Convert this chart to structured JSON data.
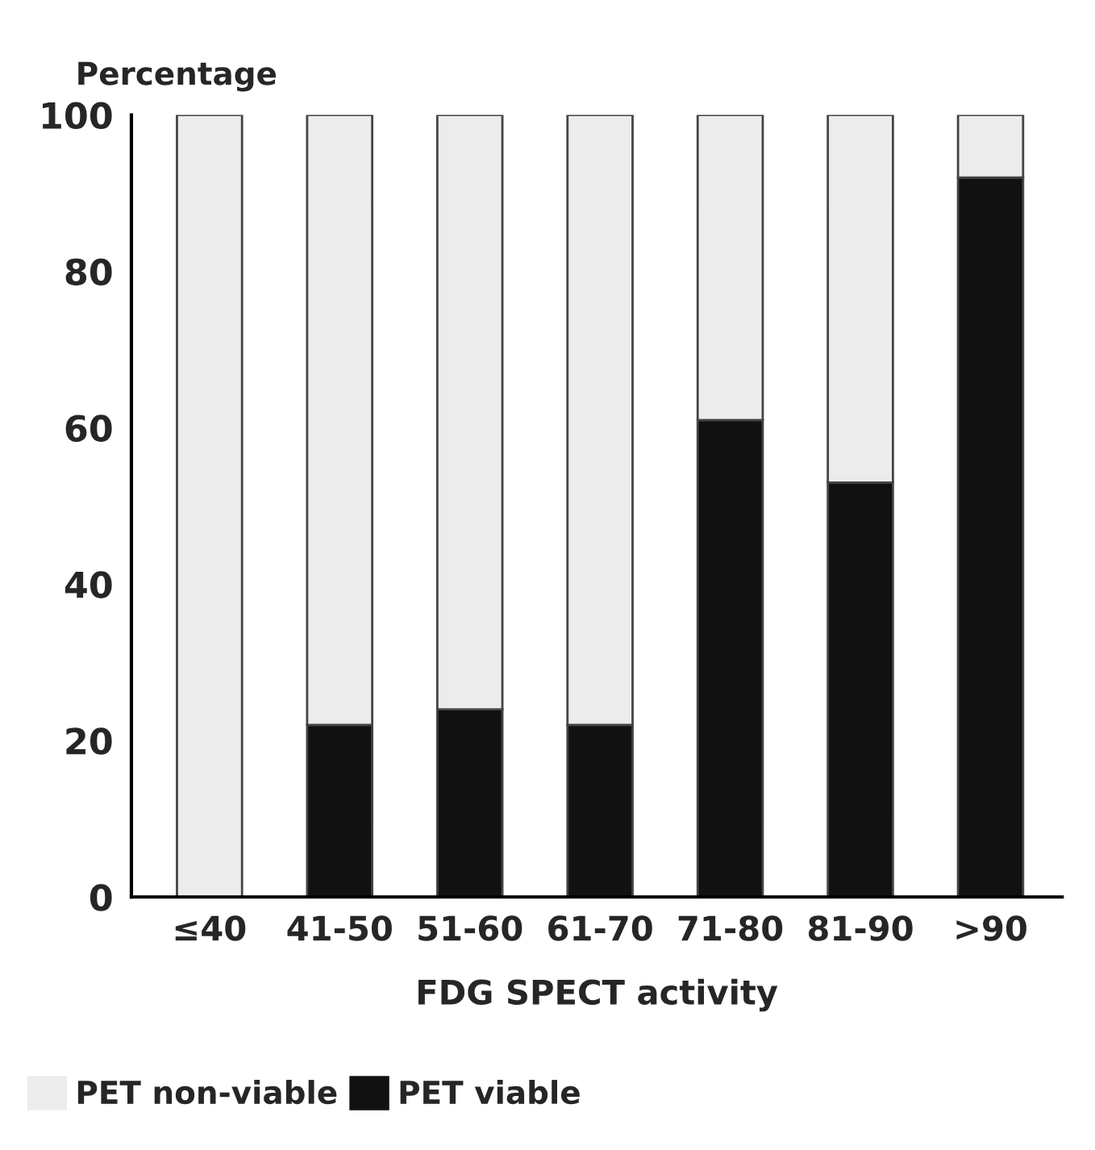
{
  "chart_data": {
    "type": "bar",
    "stacked": true,
    "ylabel": "Percentage",
    "xlabel": "FDG SPECT activity",
    "categories": [
      "≤40",
      "41-50",
      "51-60",
      "61-70",
      "71-80",
      "81-90",
      ">90"
    ],
    "series": [
      {
        "name": "PET viable",
        "color": "#111111",
        "values": [
          0,
          22,
          24,
          22,
          61,
          53,
          92
        ]
      },
      {
        "name": "PET non-viable",
        "color": "#ececec",
        "values": [
          100,
          78,
          76,
          78,
          39,
          47,
          8
        ]
      }
    ],
    "ylim": [
      0,
      100
    ],
    "yticks": [
      0,
      20,
      40,
      60,
      80,
      100
    ],
    "grid": false,
    "legend": "bottom left"
  }
}
